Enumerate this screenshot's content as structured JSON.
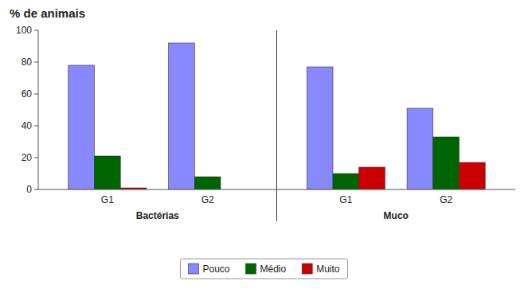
{
  "chart_data": {
    "type": "bar",
    "title": "% de animais",
    "groups": [
      {
        "name": "Bactérias",
        "categories": [
          "G1",
          "G2"
        ]
      },
      {
        "name": "Muco",
        "categories": [
          "G1",
          "G2"
        ]
      }
    ],
    "series": [
      {
        "name": "Pouco",
        "color": "#8888FF",
        "values": [
          78,
          92,
          77,
          51
        ]
      },
      {
        "name": "Médio",
        "color": "#006400",
        "values": [
          21,
          8,
          10,
          33
        ]
      },
      {
        "name": "Muito",
        "color": "#CC0000",
        "values": [
          1,
          0,
          14,
          17
        ]
      }
    ],
    "ylim": [
      0,
      100
    ],
    "yticks": [
      0,
      20,
      40,
      60,
      80,
      100
    ],
    "grid": false,
    "legend": "bottom"
  }
}
